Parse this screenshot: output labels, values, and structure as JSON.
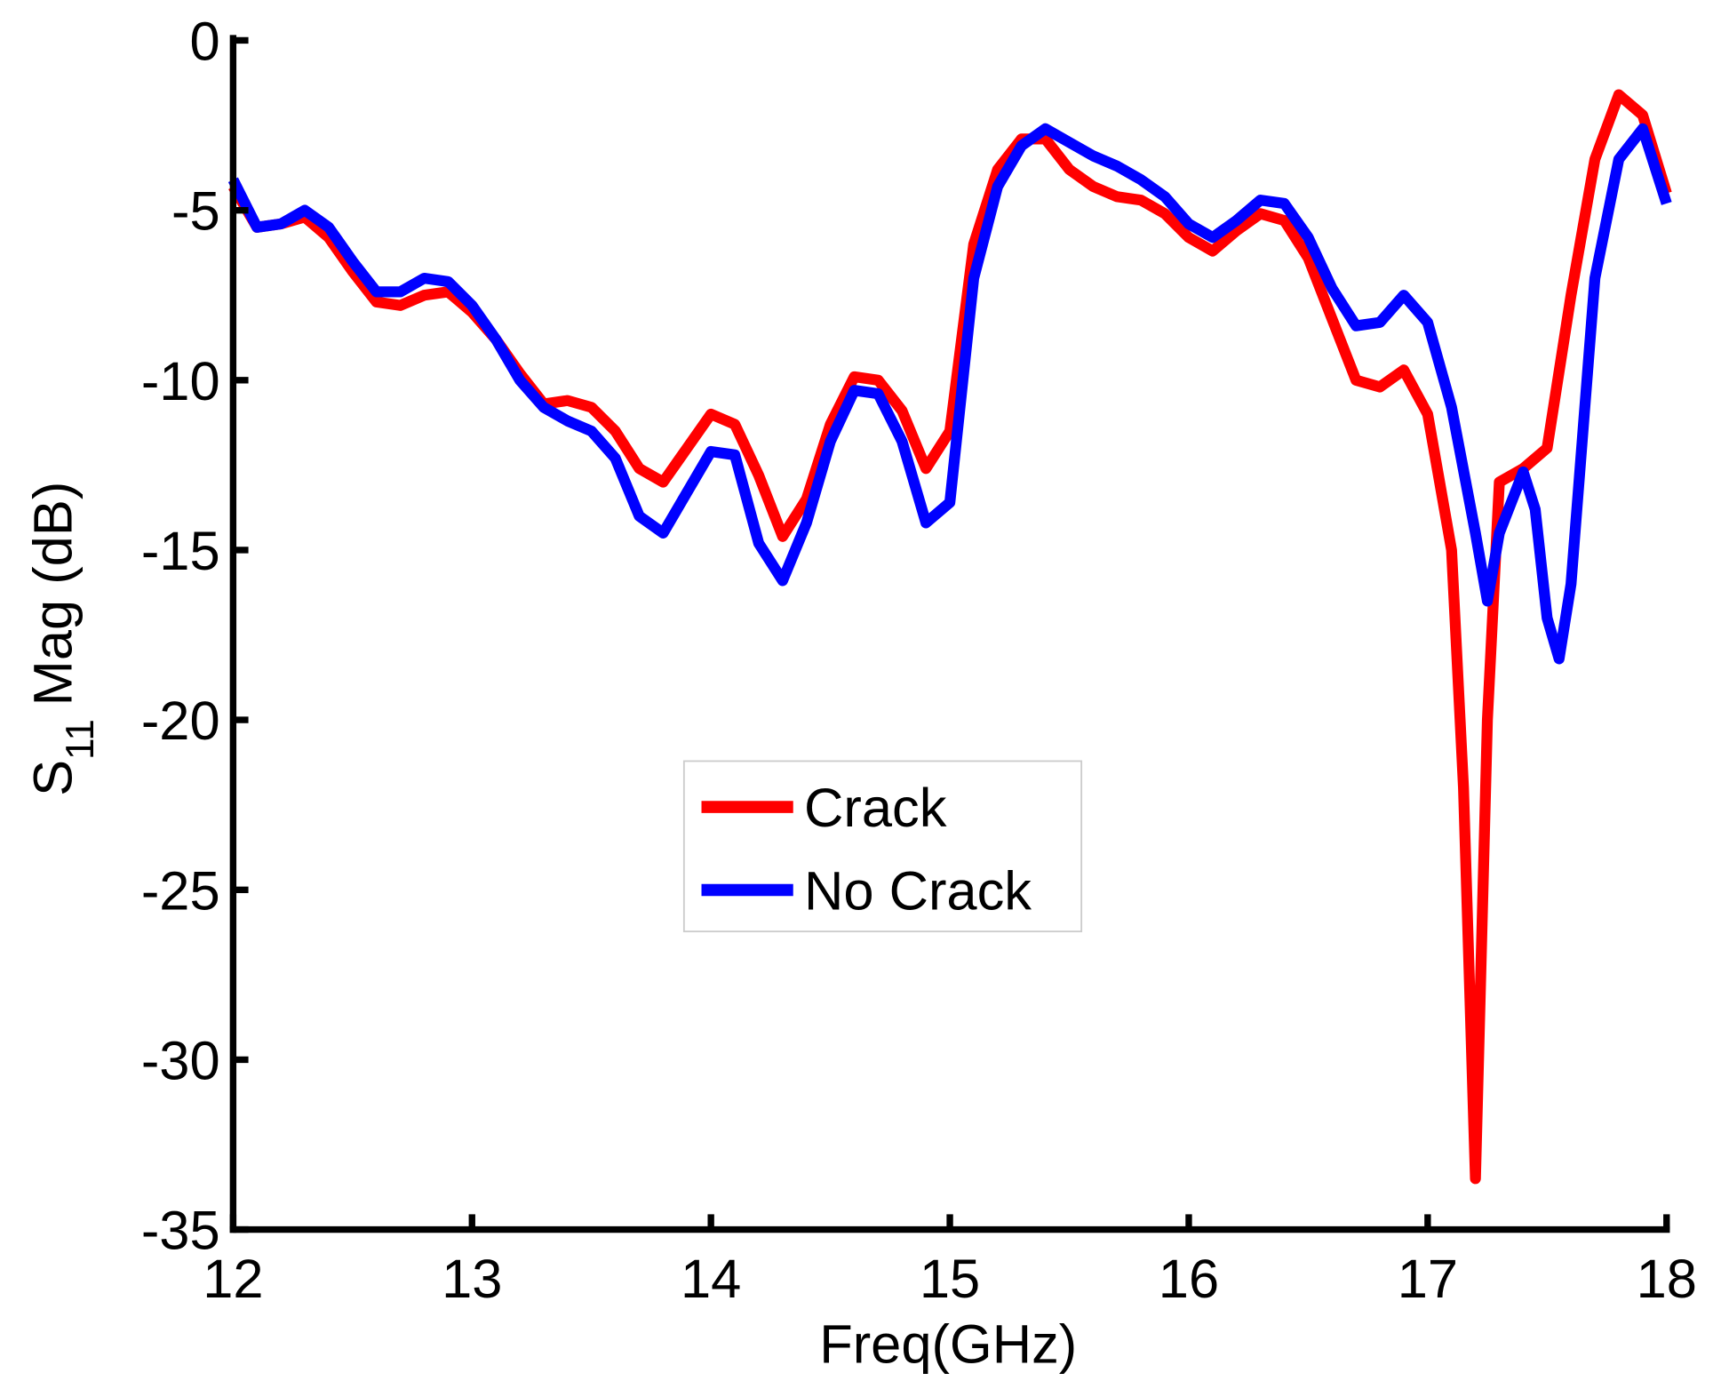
{
  "chart_data": {
    "type": "line",
    "xlabel": "Freq(GHz)",
    "ylabel": {
      "main": "S",
      "sub": "11",
      "rest": "Mag (dB)"
    },
    "xlim": [
      12,
      18
    ],
    "ylim": [
      -35,
      0
    ],
    "xticks": [
      12,
      13,
      14,
      15,
      16,
      17,
      18
    ],
    "yticks": [
      0,
      -5,
      -10,
      -15,
      -20,
      -25,
      -30,
      -35
    ],
    "grid": false,
    "legend": "center",
    "series": [
      {
        "name": "Crack",
        "color": "#ff0000",
        "x": [
          12.0,
          12.1,
          12.2,
          12.3,
          12.4,
          12.5,
          12.6,
          12.7,
          12.8,
          12.9,
          13.0,
          13.1,
          13.2,
          13.3,
          13.4,
          13.5,
          13.6,
          13.7,
          13.8,
          13.9,
          14.0,
          14.1,
          14.2,
          14.3,
          14.4,
          14.5,
          14.6,
          14.7,
          14.8,
          14.9,
          15.0,
          15.1,
          15.2,
          15.3,
          15.4,
          15.5,
          15.6,
          15.7,
          15.8,
          15.9,
          16.0,
          16.1,
          16.2,
          16.3,
          16.4,
          16.5,
          16.6,
          16.7,
          16.8,
          16.9,
          17.0,
          17.1,
          17.15,
          17.2,
          17.25,
          17.3,
          17.4,
          17.5,
          17.6,
          17.7,
          17.8,
          17.9,
          18.0
        ],
        "values": [
          -4.3,
          -5.5,
          -5.4,
          -5.2,
          -5.8,
          -6.8,
          -7.7,
          -7.8,
          -7.5,
          -7.4,
          -8.0,
          -8.8,
          -9.8,
          -10.7,
          -10.6,
          -10.8,
          -11.5,
          -12.6,
          -13.0,
          -12.0,
          -11.0,
          -11.3,
          -12.8,
          -14.6,
          -13.5,
          -11.3,
          -9.9,
          -10.0,
          -10.9,
          -12.6,
          -11.5,
          -6.0,
          -3.8,
          -2.9,
          -2.9,
          -3.8,
          -4.3,
          -4.6,
          -4.7,
          -5.1,
          -5.8,
          -6.2,
          -5.6,
          -5.1,
          -5.3,
          -6.4,
          -8.2,
          -10.0,
          -10.2,
          -9.7,
          -11.0,
          -15.0,
          -22.0,
          -33.5,
          -20.0,
          -13.0,
          -12.6,
          -12.0,
          -7.5,
          -3.5,
          -1.6,
          -2.2,
          -4.5
        ]
      },
      {
        "name": "No Crack",
        "color": "#0000ff",
        "x": [
          12.0,
          12.1,
          12.2,
          12.3,
          12.4,
          12.5,
          12.6,
          12.7,
          12.8,
          12.9,
          13.0,
          13.1,
          13.2,
          13.3,
          13.4,
          13.5,
          13.6,
          13.7,
          13.8,
          13.9,
          14.0,
          14.1,
          14.2,
          14.3,
          14.4,
          14.5,
          14.6,
          14.7,
          14.8,
          14.9,
          15.0,
          15.1,
          15.2,
          15.3,
          15.4,
          15.5,
          15.6,
          15.7,
          15.8,
          15.9,
          16.0,
          16.1,
          16.2,
          16.3,
          16.4,
          16.5,
          16.6,
          16.7,
          16.8,
          16.9,
          17.0,
          17.1,
          17.2,
          17.25,
          17.3,
          17.4,
          17.45,
          17.5,
          17.55,
          17.6,
          17.7,
          17.8,
          17.9,
          18.0
        ],
        "values": [
          -4.1,
          -5.5,
          -5.4,
          -5.0,
          -5.5,
          -6.5,
          -7.4,
          -7.4,
          -7.0,
          -7.1,
          -7.8,
          -8.8,
          -10.0,
          -10.8,
          -11.2,
          -11.5,
          -12.3,
          -14.0,
          -14.5,
          -13.3,
          -12.1,
          -12.2,
          -14.8,
          -15.9,
          -14.2,
          -11.8,
          -10.3,
          -10.4,
          -11.8,
          -14.2,
          -13.6,
          -7.0,
          -4.3,
          -3.1,
          -2.6,
          -3.0,
          -3.4,
          -3.7,
          -4.1,
          -4.6,
          -5.4,
          -5.8,
          -5.3,
          -4.7,
          -4.8,
          -5.8,
          -7.3,
          -8.4,
          -8.3,
          -7.5,
          -8.3,
          -10.8,
          -14.5,
          -16.5,
          -14.5,
          -12.7,
          -13.8,
          -17.0,
          -18.2,
          -16.0,
          -7.0,
          -3.5,
          -2.6,
          -4.8
        ]
      }
    ]
  }
}
